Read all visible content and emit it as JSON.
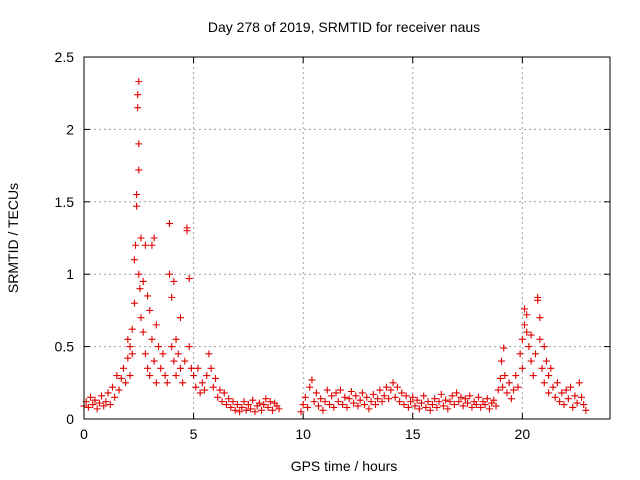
{
  "chart_data": {
    "type": "scatter",
    "title": "Day 278 of 2019, SRMTID for receiver naus",
    "xlabel": "GPS time / hours",
    "ylabel": "SRMTID / TECUs",
    "xlim": [
      0,
      24
    ],
    "ylim": [
      0,
      2.5
    ],
    "xticks": [
      0,
      5,
      10,
      15,
      20
    ],
    "yticks": [
      0,
      0.5,
      1,
      1.5,
      2,
      2.5
    ],
    "xtick_labels": [
      "0",
      "5",
      "10",
      "15",
      "20"
    ],
    "ytick_labels": [
      "0",
      "0.5",
      "1",
      "1.5",
      "2",
      "2.5"
    ],
    "grid": true,
    "marker": "+",
    "color": "#e00000",
    "series": [
      {
        "name": "SRMTID",
        "points": [
          [
            0.0,
            0.09
          ],
          [
            0.1,
            0.12
          ],
          [
            0.2,
            0.08
          ],
          [
            0.3,
            0.15
          ],
          [
            0.4,
            0.1
          ],
          [
            0.5,
            0.13
          ],
          [
            0.6,
            0.07
          ],
          [
            0.7,
            0.11
          ],
          [
            0.8,
            0.16
          ],
          [
            0.9,
            0.09
          ],
          [
            1.0,
            0.12
          ],
          [
            1.1,
            0.18
          ],
          [
            1.2,
            0.1
          ],
          [
            1.3,
            0.22
          ],
          [
            1.4,
            0.15
          ],
          [
            1.5,
            0.3
          ],
          [
            1.6,
            0.2
          ],
          [
            1.7,
            0.28
          ],
          [
            1.8,
            0.35
          ],
          [
            1.9,
            0.25
          ],
          [
            2.0,
            0.42
          ],
          [
            2.0,
            0.55
          ],
          [
            2.1,
            0.5
          ],
          [
            2.1,
            0.3
          ],
          [
            2.2,
            0.62
          ],
          [
            2.2,
            0.45
          ],
          [
            2.3,
            0.8
          ],
          [
            2.3,
            1.1
          ],
          [
            2.35,
            1.2
          ],
          [
            2.4,
            1.47
          ],
          [
            2.4,
            1.55
          ],
          [
            2.45,
            2.15
          ],
          [
            2.45,
            2.24
          ],
          [
            2.5,
            2.33
          ],
          [
            2.5,
            1.9
          ],
          [
            2.5,
            1.72
          ],
          [
            2.5,
            1.0
          ],
          [
            2.55,
            0.9
          ],
          [
            2.6,
            1.25
          ],
          [
            2.6,
            0.7
          ],
          [
            2.7,
            0.95
          ],
          [
            2.7,
            0.6
          ],
          [
            2.8,
            1.2
          ],
          [
            2.8,
            0.45
          ],
          [
            2.9,
            0.85
          ],
          [
            2.9,
            0.35
          ],
          [
            3.0,
            0.75
          ],
          [
            3.0,
            0.3
          ],
          [
            3.1,
            1.2
          ],
          [
            3.1,
            0.55
          ],
          [
            3.2,
            1.25
          ],
          [
            3.2,
            0.4
          ],
          [
            3.3,
            0.65
          ],
          [
            3.3,
            0.25
          ],
          [
            3.4,
            0.5
          ],
          [
            3.5,
            0.35
          ],
          [
            3.6,
            0.45
          ],
          [
            3.7,
            0.3
          ],
          [
            3.8,
            0.25
          ],
          [
            3.9,
            1.35
          ],
          [
            3.9,
            1.0
          ],
          [
            4.0,
            0.84
          ],
          [
            4.0,
            0.5
          ],
          [
            4.1,
            0.95
          ],
          [
            4.1,
            0.4
          ],
          [
            4.2,
            0.55
          ],
          [
            4.2,
            0.3
          ],
          [
            4.3,
            0.45
          ],
          [
            4.4,
            0.7
          ],
          [
            4.4,
            0.35
          ],
          [
            4.5,
            0.25
          ],
          [
            4.6,
            0.4
          ],
          [
            4.7,
            1.32
          ],
          [
            4.7,
            1.3
          ],
          [
            4.8,
            0.97
          ],
          [
            4.8,
            0.5
          ],
          [
            4.9,
            0.35
          ],
          [
            5.0,
            0.3
          ],
          [
            5.1,
            0.22
          ],
          [
            5.2,
            0.35
          ],
          [
            5.3,
            0.18
          ],
          [
            5.4,
            0.25
          ],
          [
            5.5,
            0.2
          ],
          [
            5.6,
            0.3
          ],
          [
            5.7,
            0.45
          ],
          [
            5.8,
            0.35
          ],
          [
            5.9,
            0.22
          ],
          [
            6.0,
            0.28
          ],
          [
            6.1,
            0.15
          ],
          [
            6.2,
            0.2
          ],
          [
            6.3,
            0.12
          ],
          [
            6.4,
            0.18
          ],
          [
            6.5,
            0.1
          ],
          [
            6.6,
            0.14
          ],
          [
            6.7,
            0.08
          ],
          [
            6.8,
            0.12
          ],
          [
            6.9,
            0.06
          ],
          [
            7.0,
            0.1
          ],
          [
            7.1,
            0.05
          ],
          [
            7.2,
            0.08
          ],
          [
            7.3,
            0.12
          ],
          [
            7.4,
            0.06
          ],
          [
            7.5,
            0.1
          ],
          [
            7.6,
            0.07
          ],
          [
            7.7,
            0.13
          ],
          [
            7.8,
            0.05
          ],
          [
            7.9,
            0.09
          ],
          [
            8.0,
            0.11
          ],
          [
            8.1,
            0.06
          ],
          [
            8.2,
            0.1
          ],
          [
            8.3,
            0.14
          ],
          [
            8.4,
            0.08
          ],
          [
            8.5,
            0.12
          ],
          [
            8.6,
            0.06
          ],
          [
            8.7,
            0.11
          ],
          [
            8.8,
            0.09
          ],
          [
            8.9,
            0.07
          ],
          [
            9.9,
            0.05
          ],
          [
            10.0,
            0.1
          ],
          [
            10.1,
            0.15
          ],
          [
            10.2,
            0.08
          ],
          [
            10.3,
            0.22
          ],
          [
            10.4,
            0.27
          ],
          [
            10.5,
            0.12
          ],
          [
            10.6,
            0.18
          ],
          [
            10.7,
            0.09
          ],
          [
            10.8,
            0.14
          ],
          [
            10.9,
            0.06
          ],
          [
            11.0,
            0.12
          ],
          [
            11.1,
            0.2
          ],
          [
            11.2,
            0.1
          ],
          [
            11.3,
            0.16
          ],
          [
            11.4,
            0.08
          ],
          [
            11.5,
            0.18
          ],
          [
            11.6,
            0.12
          ],
          [
            11.7,
            0.2
          ],
          [
            11.8,
            0.1
          ],
          [
            11.9,
            0.15
          ],
          [
            12.0,
            0.08
          ],
          [
            12.1,
            0.14
          ],
          [
            12.2,
            0.19
          ],
          [
            12.3,
            0.11
          ],
          [
            12.4,
            0.16
          ],
          [
            12.5,
            0.09
          ],
          [
            12.6,
            0.13
          ],
          [
            12.7,
            0.18
          ],
          [
            12.8,
            0.1
          ],
          [
            12.9,
            0.15
          ],
          [
            13.0,
            0.07
          ],
          [
            13.1,
            0.12
          ],
          [
            13.2,
            0.17
          ],
          [
            13.3,
            0.1
          ],
          [
            13.4,
            0.14
          ],
          [
            13.5,
            0.2
          ],
          [
            13.6,
            0.12
          ],
          [
            13.7,
            0.16
          ],
          [
            13.8,
            0.22
          ],
          [
            13.9,
            0.14
          ],
          [
            14.0,
            0.2
          ],
          [
            14.1,
            0.25
          ],
          [
            14.2,
            0.15
          ],
          [
            14.3,
            0.22
          ],
          [
            14.4,
            0.12
          ],
          [
            14.5,
            0.18
          ],
          [
            14.6,
            0.1
          ],
          [
            14.7,
            0.16
          ],
          [
            14.8,
            0.08
          ],
          [
            14.9,
            0.12
          ],
          [
            15.0,
            0.15
          ],
          [
            15.1,
            0.09
          ],
          [
            15.2,
            0.13
          ],
          [
            15.3,
            0.07
          ],
          [
            15.4,
            0.11
          ],
          [
            15.5,
            0.16
          ],
          [
            15.6,
            0.08
          ],
          [
            15.7,
            0.12
          ],
          [
            15.8,
            0.06
          ],
          [
            15.9,
            0.1
          ],
          [
            16.0,
            0.14
          ],
          [
            16.1,
            0.08
          ],
          [
            16.2,
            0.12
          ],
          [
            16.3,
            0.17
          ],
          [
            16.4,
            0.09
          ],
          [
            16.5,
            0.13
          ],
          [
            16.6,
            0.07
          ],
          [
            16.7,
            0.12
          ],
          [
            16.8,
            0.16
          ],
          [
            16.9,
            0.1
          ],
          [
            17.0,
            0.18
          ],
          [
            17.1,
            0.12
          ],
          [
            17.2,
            0.15
          ],
          [
            17.3,
            0.09
          ],
          [
            17.4,
            0.14
          ],
          [
            17.5,
            0.11
          ],
          [
            17.6,
            0.16
          ],
          [
            17.7,
            0.08
          ],
          [
            17.8,
            0.12
          ],
          [
            17.9,
            0.1
          ],
          [
            18.0,
            0.15
          ],
          [
            18.1,
            0.08
          ],
          [
            18.2,
            0.12
          ],
          [
            18.3,
            0.1
          ],
          [
            18.4,
            0.14
          ],
          [
            18.5,
            0.07
          ],
          [
            18.6,
            0.11
          ],
          [
            18.7,
            0.13
          ],
          [
            18.8,
            0.09
          ],
          [
            18.9,
            0.2
          ],
          [
            19.0,
            0.28
          ],
          [
            19.05,
            0.4
          ],
          [
            19.1,
            0.22
          ],
          [
            19.15,
            0.49
          ],
          [
            19.2,
            0.3
          ],
          [
            19.3,
            0.18
          ],
          [
            19.4,
            0.25
          ],
          [
            19.5,
            0.14
          ],
          [
            19.6,
            0.2
          ],
          [
            19.7,
            0.3
          ],
          [
            19.8,
            0.22
          ],
          [
            19.9,
            0.45
          ],
          [
            20.0,
            0.55
          ],
          [
            20.0,
            0.35
          ],
          [
            20.1,
            0.65
          ],
          [
            20.1,
            0.76
          ],
          [
            20.2,
            0.6
          ],
          [
            20.2,
            0.72
          ],
          [
            20.3,
            0.5
          ],
          [
            20.4,
            0.58
          ],
          [
            20.4,
            0.4
          ],
          [
            20.5,
            0.3
          ],
          [
            20.6,
            0.45
          ],
          [
            20.7,
            0.84
          ],
          [
            20.7,
            0.82
          ],
          [
            20.8,
            0.7
          ],
          [
            20.8,
            0.55
          ],
          [
            20.9,
            0.35
          ],
          [
            21.0,
            0.5
          ],
          [
            21.0,
            0.25
          ],
          [
            21.1,
            0.4
          ],
          [
            21.2,
            0.3
          ],
          [
            21.2,
            0.18
          ],
          [
            21.3,
            0.35
          ],
          [
            21.4,
            0.22
          ],
          [
            21.5,
            0.15
          ],
          [
            21.6,
            0.25
          ],
          [
            21.7,
            0.12
          ],
          [
            21.8,
            0.18
          ],
          [
            21.9,
            0.1
          ],
          [
            22.0,
            0.2
          ],
          [
            22.1,
            0.14
          ],
          [
            22.2,
            0.22
          ],
          [
            22.3,
            0.08
          ],
          [
            22.4,
            0.16
          ],
          [
            22.5,
            0.11
          ],
          [
            22.6,
            0.25
          ],
          [
            22.7,
            0.15
          ],
          [
            22.8,
            0.1
          ],
          [
            22.9,
            0.06
          ]
        ]
      }
    ]
  }
}
